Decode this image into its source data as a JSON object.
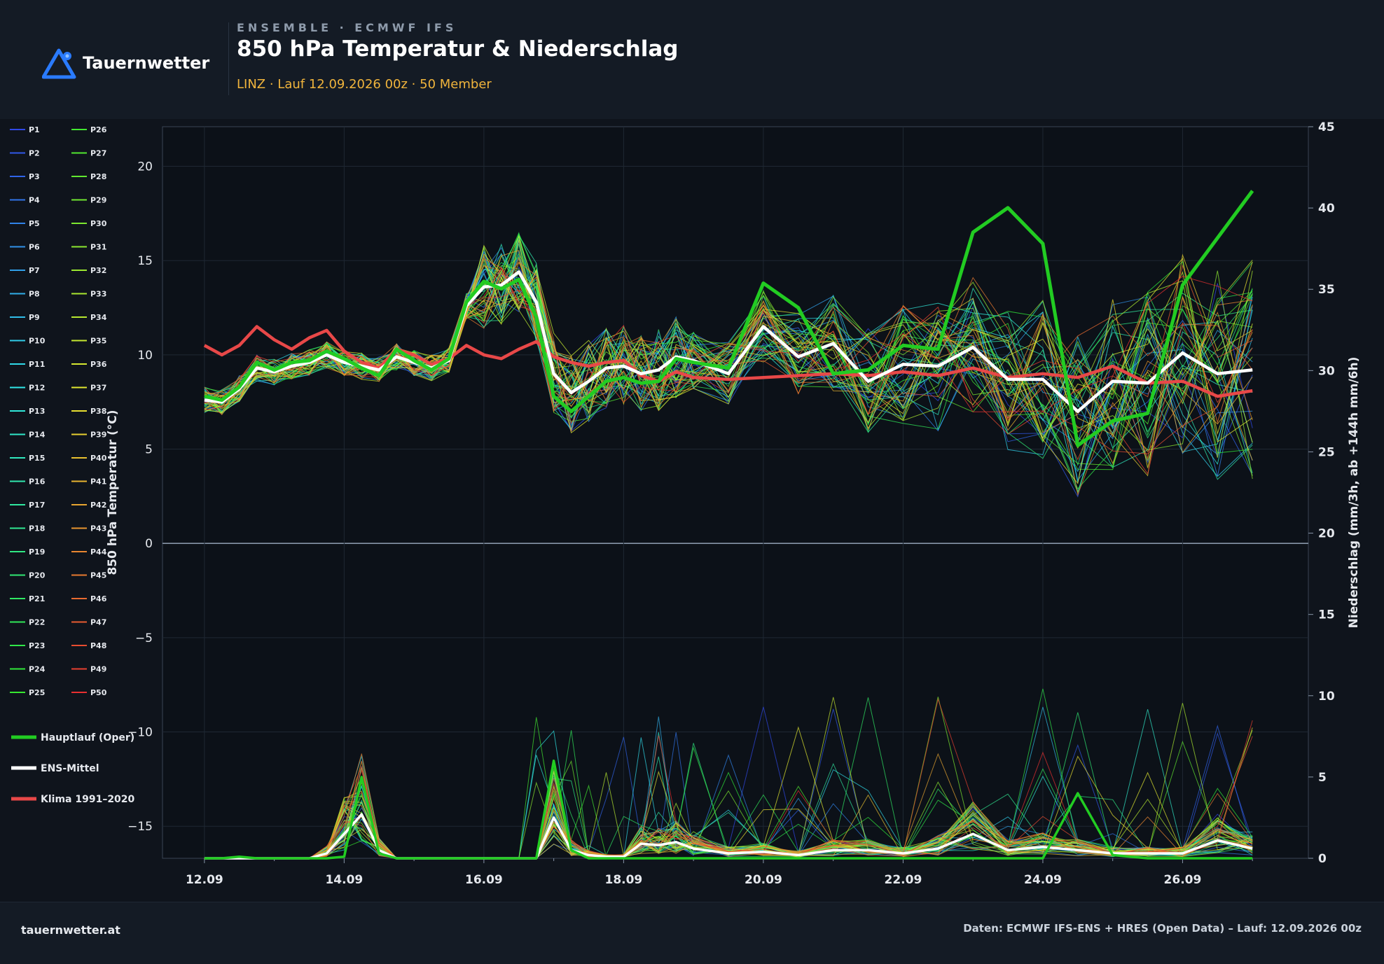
{
  "header": {
    "brand": "Tauernwetter",
    "eyebrow": "ENSEMBLE · ECMWF IFS",
    "title": "850 hPa Temperatur & Niederschlag",
    "subtitle": "LINZ · Lauf 12.09.2026 00z · 50 Member"
  },
  "footer": {
    "site": "tauernwetter.at",
    "source": "Daten: ECMWF IFS-ENS + HRES (Open Data) – Lauf: 12.09.2026 00z"
  },
  "colors": {
    "background": "#0f141c",
    "panel": "#141b25",
    "oper": "#22cc22",
    "mean": "#ffffff",
    "climate": "#e84848",
    "accent": "#f0b43c"
  },
  "chart_data": {
    "type": "line",
    "xlabel": "",
    "ylabel": "850 hPa Temperatur (°C)",
    "y2label": "Niederschlag (mm/3h, ab +144h mm/6h)",
    "x_ticks": [
      "12.09",
      "14.09",
      "16.09",
      "18.09",
      "20.09",
      "22.09",
      "24.09",
      "26.09"
    ],
    "xlim_days": [
      11.4,
      27.8
    ],
    "ylim": [
      -16.7,
      22.1
    ],
    "y_ticks": [
      20,
      15,
      10,
      5,
      0,
      -5,
      -10,
      -15
    ],
    "y2lim": [
      0,
      45
    ],
    "y2_ticks": [
      45,
      40,
      35,
      30,
      25,
      20,
      15,
      10,
      5,
      0
    ],
    "member_count": 50,
    "member_legend": [
      "P1",
      "P2",
      "P3",
      "P4",
      "P5",
      "P6",
      "P7",
      "P8",
      "P9",
      "P10",
      "P11",
      "P12",
      "P13",
      "P14",
      "P15",
      "P16",
      "P17",
      "P18",
      "P19",
      "P20",
      "P21",
      "P22",
      "P23",
      "P24",
      "P25",
      "P26",
      "P27",
      "P28",
      "P29",
      "P30",
      "P31",
      "P32",
      "P33",
      "P34",
      "P35",
      "P36",
      "P37",
      "P38",
      "P39",
      "P40",
      "P41",
      "P42",
      "P43",
      "P44",
      "P45",
      "P46",
      "P47",
      "P48",
      "P49",
      "P50"
    ],
    "series_legend": [
      "Hauptlauf (Oper)",
      "ENS-Mittel",
      "Klima 1991–2020"
    ],
    "x": [
      12.0,
      12.25,
      12.5,
      12.75,
      13.0,
      13.25,
      13.5,
      13.75,
      14.0,
      14.25,
      14.5,
      14.75,
      15.0,
      15.25,
      15.5,
      15.75,
      16.0,
      16.25,
      16.5,
      16.75,
      17.0,
      17.25,
      17.5,
      17.75,
      18.0,
      18.25,
      18.5,
      18.75,
      19.0,
      19.5,
      20.0,
      20.5,
      21.0,
      21.5,
      22.0,
      22.5,
      23.0,
      23.5,
      24.0,
      24.5,
      25.0,
      25.5,
      26.0,
      26.5,
      27.0
    ],
    "temperature": {
      "oper": [
        7.8,
        7.6,
        8.3,
        9.6,
        9.2,
        9.6,
        9.7,
        10.2,
        9.8,
        9.3,
        8.9,
        10.3,
        9.7,
        9.2,
        9.8,
        12.8,
        13.9,
        13.5,
        14.0,
        12.0,
        7.8,
        7.0,
        7.8,
        8.6,
        8.8,
        8.5,
        8.6,
        9.8,
        9.6,
        9.3,
        13.8,
        12.5,
        9.0,
        9.2,
        10.5,
        10.3,
        16.5,
        17.8,
        15.9,
        5.2,
        6.5,
        6.9,
        13.7,
        16.2,
        18.7
      ],
      "mean": [
        7.6,
        7.5,
        8.2,
        9.3,
        9.1,
        9.4,
        9.6,
        10.0,
        9.6,
        9.4,
        9.2,
        9.9,
        9.6,
        9.3,
        9.7,
        12.6,
        13.6,
        13.7,
        14.4,
        12.8,
        9.0,
        8.0,
        8.6,
        9.3,
        9.4,
        9.0,
        9.2,
        9.9,
        9.7,
        9.0,
        11.5,
        9.9,
        10.6,
        8.6,
        9.5,
        9.4,
        10.4,
        8.7,
        8.7,
        7.0,
        8.6,
        8.5,
        10.1,
        9.0,
        9.2
      ],
      "climate": [
        10.5,
        10.0,
        10.5,
        11.5,
        10.8,
        10.3,
        10.9,
        11.3,
        10.2,
        9.6,
        9.3,
        10.3,
        10.0,
        9.5,
        9.8,
        10.5,
        10.0,
        9.8,
        10.3,
        10.7,
        9.9,
        9.6,
        9.4,
        9.6,
        9.7,
        8.9,
        8.6,
        9.1,
        8.8,
        8.7,
        8.8,
        8.9,
        9.0,
        8.9,
        9.1,
        8.9,
        9.3,
        8.8,
        9.0,
        8.8,
        9.4,
        8.5,
        8.6,
        7.8,
        8.1
      ]
    },
    "precipitation": {
      "oper": [
        0,
        0,
        0.1,
        0,
        0,
        0,
        0,
        0,
        0.1,
        5.0,
        0.3,
        0,
        0,
        0,
        0,
        0,
        0,
        0,
        0,
        0,
        6.0,
        0.5,
        0,
        0,
        0,
        0,
        0,
        0,
        0,
        0,
        0,
        0,
        0,
        0,
        0,
        0,
        0,
        0,
        0,
        4.0,
        0.2,
        0,
        0,
        0,
        0
      ],
      "mean": [
        0,
        0,
        0,
        0,
        0,
        0,
        0,
        0.3,
        1.5,
        2.7,
        0.5,
        0,
        0,
        0,
        0,
        0,
        0,
        0,
        0,
        0,
        2.5,
        0.5,
        0.2,
        0.1,
        0.1,
        0.9,
        0.8,
        1.0,
        0.6,
        0.3,
        0.4,
        0.2,
        0.5,
        0.5,
        0.3,
        0.6,
        1.5,
        0.5,
        0.7,
        0.5,
        0.3,
        0.3,
        0.3,
        1.1,
        0.6
      ]
    }
  }
}
